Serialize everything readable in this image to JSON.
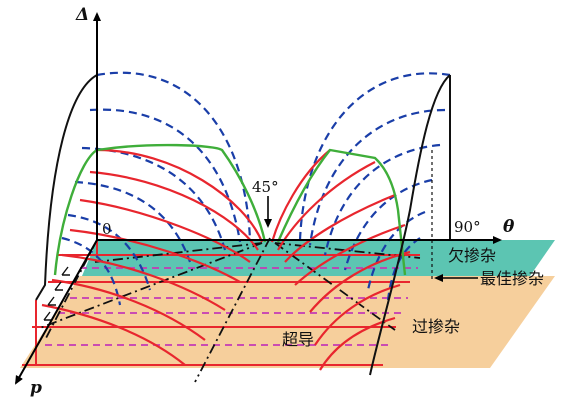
{
  "axes": {
    "y_label": "Δ",
    "x_label": "θ",
    "z_label": "p",
    "origin_label": "0",
    "max_angle_label": "90°"
  },
  "annotations": {
    "angle_45": "45°"
  },
  "regions": {
    "underdoped": "欠掺杂",
    "optimal": "最佳掺杂",
    "overdoped": "过掺杂",
    "superconducting": "超导"
  },
  "colors": {
    "teal_plane": "#5cc5b2",
    "tan_plane": "#f6cf9c",
    "red_curve": "#e8262e",
    "blue_dashed": "#1a3ea8",
    "green_curve": "#3fae3a",
    "magenta_dashed": "#c43ab5",
    "axis": "#000000"
  }
}
